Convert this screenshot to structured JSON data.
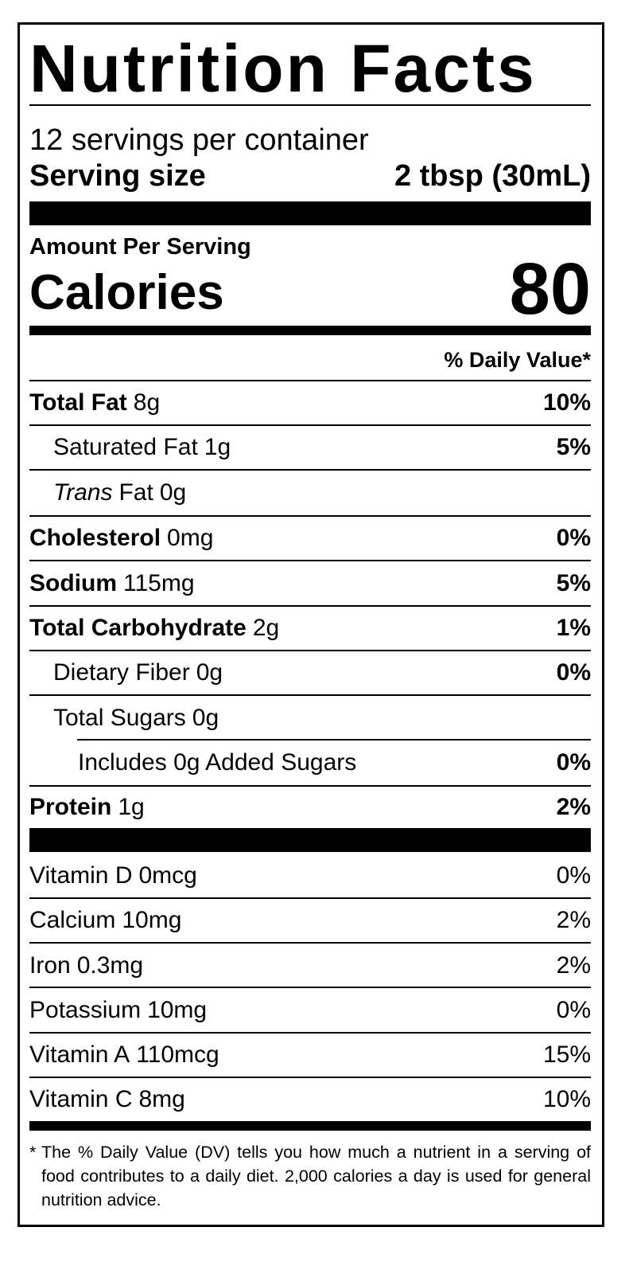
{
  "title": "Nutrition Facts",
  "servings": "12 servings per container",
  "serving_size": {
    "label": "Serving size",
    "value": "2 tbsp (30mL)"
  },
  "amount_per_serving": "Amount Per Serving",
  "calories": {
    "label": "Calories",
    "value": 80
  },
  "daily_value_header": "% Daily Value*",
  "nutrients": [
    {
      "name": "Total Fat",
      "amount": "8g",
      "dv": "10%"
    },
    {
      "name": "Saturated Fat",
      "amount": "1g",
      "dv": "5%"
    },
    {
      "name_italic": "Trans",
      "name": "Fat",
      "amount": "0g"
    },
    {
      "name": "Cholesterol",
      "amount": "0mg",
      "dv": "0%"
    },
    {
      "name": "Sodium",
      "amount": "115mg",
      "dv": "5%"
    },
    {
      "name": "Total Carbohydrate",
      "amount": "2g",
      "dv": "1%"
    },
    {
      "name": "Dietary Fiber",
      "amount": "0g",
      "dv": "0%"
    },
    {
      "name": "Total Sugars",
      "amount": "0g"
    },
    {
      "name": "Includes 0g Added Sugars",
      "dv": "0%"
    },
    {
      "name": "Protein",
      "amount": "1g",
      "dv": "2%"
    }
  ],
  "vitamins": [
    {
      "name": "Vitamin D",
      "amount": "0mcg",
      "dv": "0%"
    },
    {
      "name": "Calcium",
      "amount": "10mg",
      "dv": "2%"
    },
    {
      "name": "Iron",
      "amount": "0.3mg",
      "dv": "2%"
    },
    {
      "name": "Potassium",
      "amount": "10mg",
      "dv": "0%"
    },
    {
      "name": "Vitamin A",
      "amount": "110mcg",
      "dv": "15%"
    },
    {
      "name": "Vitamin C",
      "amount": "8mg",
      "dv": "10%"
    }
  ],
  "footnote": {
    "marker": "*",
    "text": "The % Daily Value (DV) tells you how much a nutrient in a serving of food contributes to a daily diet. 2,000 calories a day is used for general nutrition advice."
  }
}
